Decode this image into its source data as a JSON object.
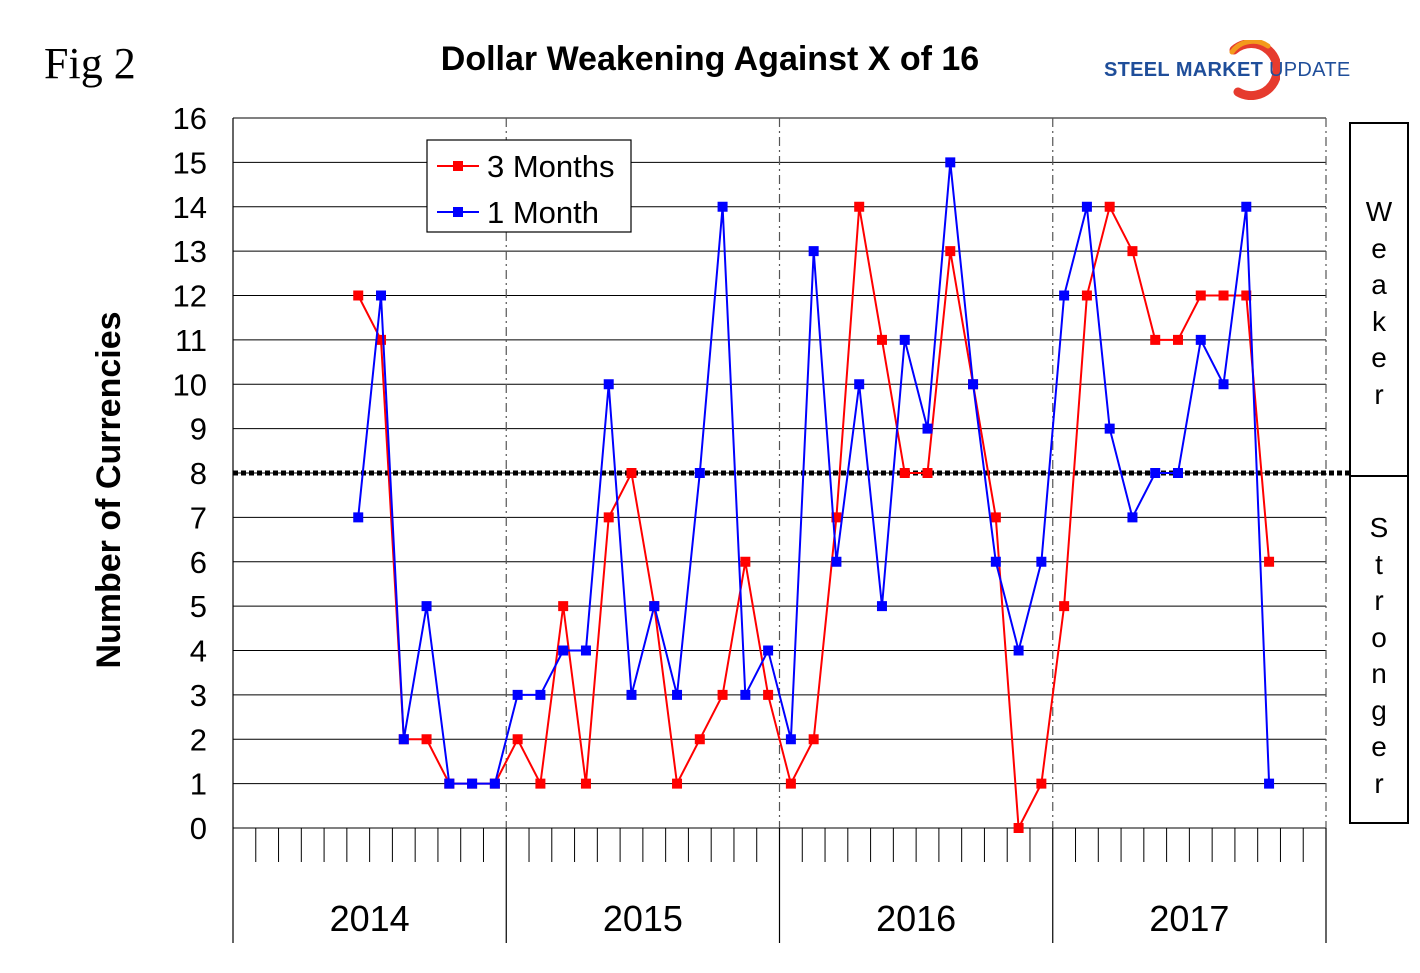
{
  "figure_label": "Fig 2",
  "logo": {
    "steel": "STEEL",
    "market": "MARKET",
    "update": "UPDATE"
  },
  "side_labels": {
    "upper": "Weaker",
    "lower": "Stronger"
  },
  "colors": {
    "series_3m": "#ff0000",
    "series_1m": "#0000ff",
    "reference_line": "#000000",
    "grid": "#000000",
    "logo_blue": "#1f4e9a",
    "logo_red": "#e63b2e",
    "logo_orange": "#f39a1c"
  },
  "chart_data": {
    "type": "line",
    "title": "Dollar Weakening Against X of 16",
    "xlabel": "",
    "ylabel": "Number of Currencies",
    "ylim": [
      0,
      16
    ],
    "yticks": [
      0,
      1,
      2,
      3,
      4,
      5,
      6,
      7,
      8,
      9,
      10,
      11,
      12,
      13,
      14,
      15,
      16
    ],
    "year_groups": [
      "2014",
      "2015",
      "2016",
      "2017"
    ],
    "months_per_year": 12,
    "legend": {
      "position": "top-left",
      "entries": [
        "3 Months",
        "1 Month"
      ]
    },
    "reference_line": {
      "y": 8,
      "style": "dotted"
    },
    "series": [
      {
        "name": "3 Months",
        "color": "#ff0000",
        "values": [
          12,
          11,
          2,
          2,
          1,
          1,
          1,
          2,
          1,
          5,
          1,
          7,
          8,
          5,
          1,
          2,
          3,
          6,
          3,
          1,
          2,
          7,
          14,
          11,
          8,
          8,
          13,
          10,
          7,
          0,
          1,
          5,
          12,
          14,
          13,
          11,
          11,
          12,
          12,
          12,
          6
        ]
      },
      {
        "name": "1 Month",
        "color": "#0000ff",
        "values": [
          7,
          12,
          2,
          5,
          1,
          1,
          1,
          3,
          3,
          4,
          4,
          10,
          3,
          5,
          3,
          8,
          14,
          3,
          4,
          2,
          13,
          6,
          10,
          5,
          11,
          9,
          15,
          10,
          6,
          4,
          6,
          12,
          14,
          9,
          7,
          8,
          8,
          11,
          10,
          14,
          1
        ]
      }
    ],
    "x_start_month_index": 5
  }
}
